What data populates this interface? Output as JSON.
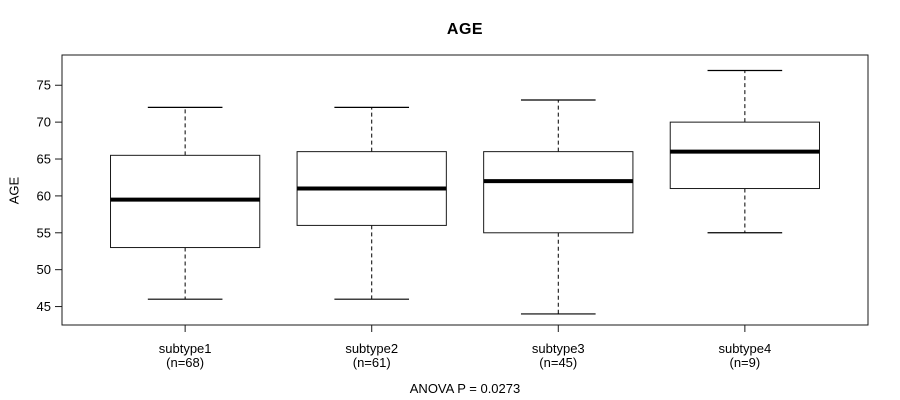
{
  "figure": {
    "background": "#ffffff"
  },
  "chart_data": {
    "type": "boxplot",
    "title": "AGE",
    "ylabel": "AGE",
    "xlabel": "",
    "annotation": "ANOVA P = 0.0273",
    "yticks": [
      45,
      50,
      55,
      60,
      65,
      70,
      75
    ],
    "ylim": [
      42.5,
      79.1
    ],
    "xlim": [
      0.34,
      4.66
    ],
    "box_width_units": 0.8,
    "cap_width_units": 0.4,
    "grid": false,
    "legend": "none",
    "categories": [
      "subtype1",
      "subtype2",
      "subtype3",
      "subtype4"
    ],
    "groups": [
      {
        "label": "subtype1",
        "sublabel": "(n=68)",
        "n": 68,
        "whisker_low": 46,
        "q1": 53,
        "median": 59.5,
        "q3": 65.5,
        "whisker_high": 72
      },
      {
        "label": "subtype2",
        "sublabel": "(n=61)",
        "n": 61,
        "whisker_low": 46,
        "q1": 56,
        "median": 61,
        "q3": 66,
        "whisker_high": 72
      },
      {
        "label": "subtype3",
        "sublabel": "(n=45)",
        "n": 45,
        "whisker_low": 44,
        "q1": 55,
        "median": 62,
        "q3": 66,
        "whisker_high": 73
      },
      {
        "label": "subtype4",
        "sublabel": "(n=9)",
        "n": 9,
        "whisker_low": 55,
        "q1": 61,
        "median": 66,
        "q3": 70,
        "whisker_high": 77
      }
    ],
    "colors": {
      "box_stroke": "#1a1a1a",
      "box_fill": "#ffffff",
      "median": "#000000",
      "whisker": "#000000",
      "axis": "#1a1a1a",
      "text": "#000000"
    }
  }
}
